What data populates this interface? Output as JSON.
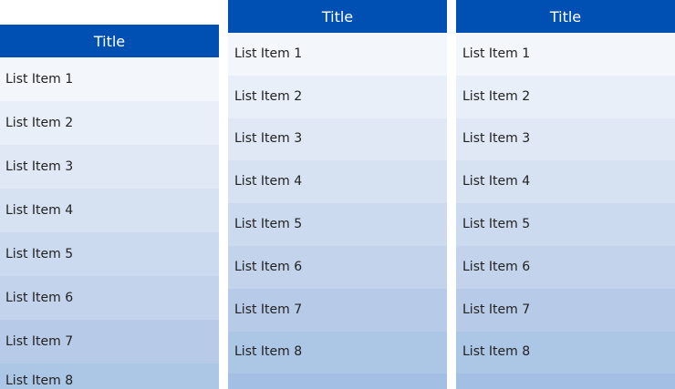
{
  "row_colors": [
    "#f3f6fb",
    "#e8eff8",
    "#dfe8f4",
    "#d6e2f2",
    "#cbdaef",
    "#c2d3eb",
    "#b7cbe8",
    "#acc6e5",
    "#a3bfe3"
  ],
  "header_color": "#0050b3",
  "panels": [
    {
      "title": "Title",
      "items": [
        "List Item 1",
        "List Item 2",
        "List Item 3",
        "List Item 4",
        "List Item 5",
        "List Item 6",
        "List Item 7",
        "List Item 8"
      ]
    },
    {
      "title": "Title",
      "items": [
        "List Item 1",
        "List Item 2",
        "List Item 3",
        "List Item 4",
        "List Item 5",
        "List Item 6",
        "List Item 7",
        "List Item 8",
        ""
      ]
    },
    {
      "title": "Title",
      "items": [
        "List Item 1",
        "List Item 2",
        "List Item 3",
        "List Item 4",
        "List Item 5",
        "List Item 6",
        "List Item 7",
        "List Item 8",
        ""
      ]
    }
  ]
}
